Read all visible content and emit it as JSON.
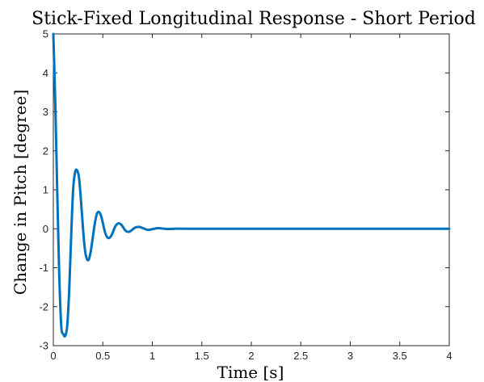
{
  "chart_data": {
    "type": "line",
    "title": "Stick-Fixed Longitudinal Response - Short Period",
    "xlabel": "Time [s]",
    "ylabel": "Change in Pitch [degree]",
    "xlim": [
      0,
      4
    ],
    "ylim": [
      -3,
      5
    ],
    "xticks": [
      0,
      0.5,
      1,
      1.5,
      2,
      2.5,
      3,
      3.5,
      4
    ],
    "xtick_labels": [
      "0",
      "0.5",
      "1",
      "1.5",
      "2",
      "2.5",
      "3",
      "3.5",
      "4"
    ],
    "yticks": [
      -3,
      -2,
      -1,
      0,
      1,
      2,
      3,
      4,
      5
    ],
    "ytick_labels": [
      "-3",
      "-2",
      "-1",
      "0",
      "1",
      "2",
      "3",
      "4",
      "5"
    ],
    "grid": false,
    "series": [
      {
        "color": "#0072BD",
        "x": [
          0,
          0.02,
          0.04,
          0.06,
          0.08,
          0.1,
          0.12,
          0.14,
          0.16,
          0.18,
          0.2,
          0.22,
          0.24,
          0.26,
          0.28,
          0.3,
          0.32,
          0.34,
          0.36,
          0.38,
          0.4,
          0.42,
          0.44,
          0.46,
          0.48,
          0.5,
          0.52,
          0.54,
          0.56,
          0.58,
          0.6,
          0.62,
          0.64,
          0.66,
          0.68,
          0.7,
          0.72,
          0.74,
          0.76,
          0.78,
          0.8,
          0.82,
          0.84,
          0.86,
          0.88,
          0.9,
          0.92,
          0.94,
          0.96,
          0.98,
          1.0,
          1.02,
          1.04,
          1.06,
          1.08,
          1.1,
          1.12,
          1.14,
          1.16,
          1.18,
          1.2,
          1.22,
          1.24,
          1.26,
          1.28,
          1.3,
          1.32,
          1.34,
          1.36,
          1.38,
          1.4,
          1.45,
          1.5,
          1.55,
          1.6,
          1.7,
          1.8,
          1.9,
          2.0,
          2.5,
          3.0,
          3.5,
          4.0
        ],
        "y": [
          5.0,
          3.2,
          0.9,
          -1.2,
          -2.5,
          -2.7,
          -2.75,
          -2.5,
          -1.6,
          -0.2,
          1.0,
          1.45,
          1.5,
          1.3,
          0.7,
          0.0,
          -0.55,
          -0.78,
          -0.78,
          -0.55,
          -0.2,
          0.15,
          0.38,
          0.43,
          0.35,
          0.15,
          -0.07,
          -0.2,
          -0.24,
          -0.2,
          -0.1,
          0.03,
          0.11,
          0.14,
          0.12,
          0.06,
          -0.02,
          -0.07,
          -0.08,
          -0.06,
          -0.02,
          0.02,
          0.04,
          0.05,
          0.04,
          0.02,
          0.0,
          -0.02,
          -0.03,
          -0.02,
          -0.01,
          0.0,
          0.01,
          0.015,
          0.012,
          0.006,
          0.0,
          -0.004,
          -0.006,
          -0.005,
          -0.003,
          0.0,
          0.002,
          0.003,
          0.002,
          0.001,
          0.0,
          -0.001,
          -0.001,
          -0.001,
          0.0,
          0.0,
          0.0,
          0.0,
          0.0,
          0.0,
          0.0,
          0.0,
          0.0,
          0.0,
          0.0,
          0.0,
          0.0
        ]
      }
    ]
  }
}
